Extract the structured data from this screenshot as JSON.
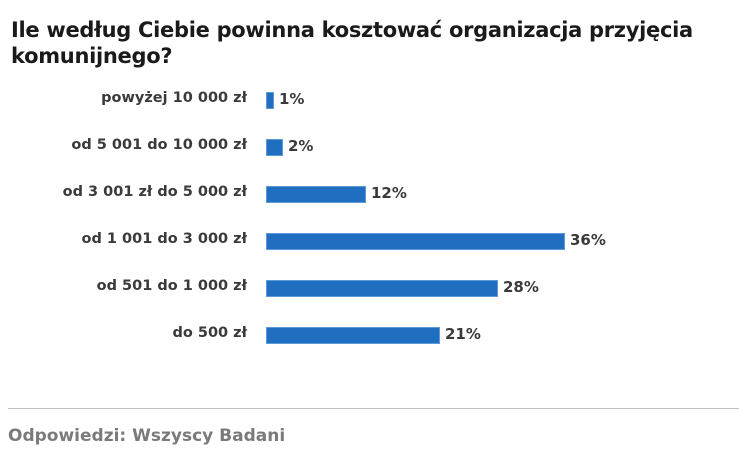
{
  "title": "Ile według Ciebie powinna kosztować organizacja przyjęcia komunijnego?",
  "footer": "Odpowiedzi: Wszyscy Badani",
  "colors": {
    "bar": "#1f6ebf",
    "text": "#3a3a3a",
    "footer": "#7a7a7a"
  },
  "rows": [
    {
      "label": "powyżej 10 000 zł",
      "value": 1,
      "value_label": "1%"
    },
    {
      "label": "od 5 001 do 10 000 zł",
      "value": 2,
      "value_label": "2%"
    },
    {
      "label": "od 3 001 zł do 5 000 zł",
      "value": 12,
      "value_label": "12%"
    },
    {
      "label": "od 1 001 do 3 000 zł",
      "value": 36,
      "value_label": "36%"
    },
    {
      "label": "od 501 do 1 000 zł",
      "value": 28,
      "value_label": "28%"
    },
    {
      "label": "do 500 zł",
      "value": 21,
      "value_label": "21%"
    }
  ],
  "chart_data": {
    "type": "bar",
    "orientation": "horizontal",
    "title": "Ile według Ciebie powinna kosztować organizacja przyjęcia komunijnego?",
    "categories": [
      "powyżej 10 000 zł",
      "od 5 001 do 10 000 zł",
      "od 3 001 zł do 5 000 zł",
      "od 1 001 do 3 000 zł",
      "od 501 do 1 000 zł",
      "do 500 zł"
    ],
    "values": [
      1,
      2,
      12,
      36,
      28,
      21
    ],
    "unit": "%",
    "xlabel": "",
    "ylabel": "",
    "grid": false,
    "legend": null,
    "data_labels": true,
    "note": "Odpowiedzi: Wszyscy Badani"
  }
}
